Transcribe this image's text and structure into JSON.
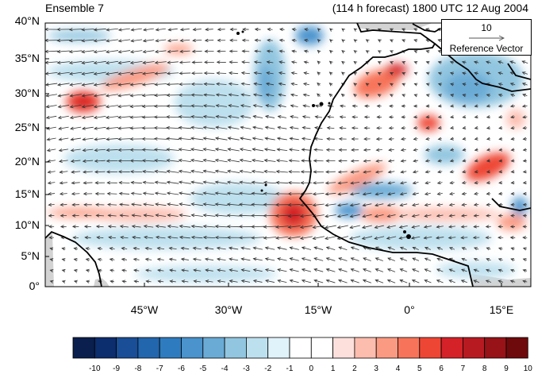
{
  "header": {
    "title_left": "Ensemble 7",
    "title_right": "(114 h forecast) 1800 UTC 12 Aug 2004"
  },
  "map": {
    "lat_ticks": [
      "40°N",
      "35°N",
      "30°N",
      "25°N",
      "20°N",
      "15°N",
      "10°N",
      "5°N",
      "0°"
    ],
    "lon_ticks": [
      "45°W",
      "30°W",
      "15°W",
      "0°",
      "15°E"
    ],
    "extent": {
      "lon_min": -60,
      "lon_max": 20,
      "lat_min": 0,
      "lat_max": 40
    }
  },
  "reference_vector": {
    "magnitude": "10",
    "label": "Reference Vector"
  },
  "colorbar": {
    "labels": [
      "-10",
      "-9",
      "-8",
      "-7",
      "-6",
      "-5",
      "-4",
      "-3",
      "-2",
      "-1",
      "0",
      "1",
      "2",
      "3",
      "4",
      "5",
      "6",
      "7",
      "8",
      "9",
      "10"
    ],
    "colors": [
      "#0a1f4d",
      "#0c2d6e",
      "#1a4e96",
      "#2266ad",
      "#2e7cbf",
      "#4a93cc",
      "#6aabd6",
      "#92c6e0",
      "#bde0ee",
      "#e0f3fa",
      "#ffffff",
      "#ffffff",
      "#fde0dc",
      "#fcbcae",
      "#fb9a82",
      "#f7745a",
      "#ee4634",
      "#d42228",
      "#b81a22",
      "#971318",
      "#6e0a0c"
    ]
  },
  "colors": {
    "land_fill": "#d3d3d3",
    "coastline": "#000000",
    "vector": "#333333"
  }
}
